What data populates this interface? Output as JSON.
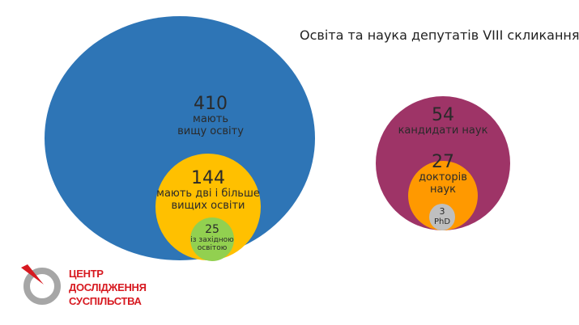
{
  "title": "Освіта та наука депутатів VIII скликання",
  "chart_data": {
    "type": "nested-bubble",
    "title": "Освіта та наука депутатів VIII скликання",
    "groups": [
      {
        "items": [
          {
            "value": "410",
            "label_line1": "мають",
            "label_line2": "вищу освіту",
            "color": "#2e75b6"
          },
          {
            "value": "144",
            "label_line1": "мають дві і більше",
            "label_line2": "вищих освіти",
            "color": "#ffc000"
          },
          {
            "value": "25",
            "label_line1": "із західною",
            "label_line2": "освітою",
            "color": "#92d050"
          }
        ]
      },
      {
        "items": [
          {
            "value": "54",
            "label_line1": "кандидати наук",
            "color": "#9e3467"
          },
          {
            "value": "27",
            "label_line1": "докторів",
            "label_line2": "наук",
            "color": "#ff9900"
          },
          {
            "value": "3",
            "label_line1": "PhD",
            "color": "#bfbfbf"
          }
        ]
      }
    ]
  },
  "logo": {
    "line1": "ЦЕНТР",
    "line2": "ДОСЛІДЖЕННЯ",
    "line3": "СУСПІЛЬСТВА",
    "color": "#d71920"
  }
}
